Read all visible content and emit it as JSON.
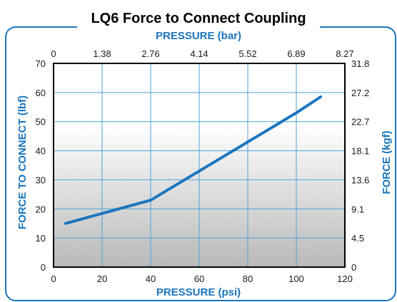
{
  "chart_data": {
    "type": "line",
    "title": "LQ6 Force to Connect Coupling",
    "x_bottom": {
      "label": "PRESSURE (psi)",
      "range": [
        0,
        120
      ],
      "ticks": [
        0,
        20,
        40,
        60,
        80,
        100,
        120
      ],
      "tick_labels": [
        "0",
        "20",
        "40",
        "60",
        "80",
        "100",
        "120"
      ]
    },
    "x_top": {
      "label": "PRESSURE (bar)",
      "tick_labels": [
        "0",
        "1.38",
        "2.76",
        "4.14",
        "5.52",
        "6.89",
        "8.27"
      ]
    },
    "y_left": {
      "label": "FORCE TO CONNECT (lbf)",
      "range": [
        0,
        70
      ],
      "ticks": [
        0,
        10,
        20,
        30,
        40,
        50,
        60,
        70
      ],
      "tick_labels": [
        "0",
        "10",
        "20",
        "30",
        "40",
        "50",
        "60",
        "70"
      ]
    },
    "y_right": {
      "label": "FORCE (kgf)",
      "tick_labels": [
        "0",
        "4.5",
        "9.1",
        "13.6",
        "18.1",
        "22.7",
        "27.2",
        "31.8"
      ]
    },
    "grid": true,
    "series": [
      {
        "color": "#1b75bc",
        "x": [
          5,
          40,
          60,
          80,
          100,
          110
        ],
        "y": [
          15,
          23,
          33,
          43,
          53,
          58.5
        ]
      }
    ]
  },
  "colors": {
    "accent": "#1b75bc",
    "frame": "#1b75bc",
    "grid": "#4aa3d9"
  }
}
